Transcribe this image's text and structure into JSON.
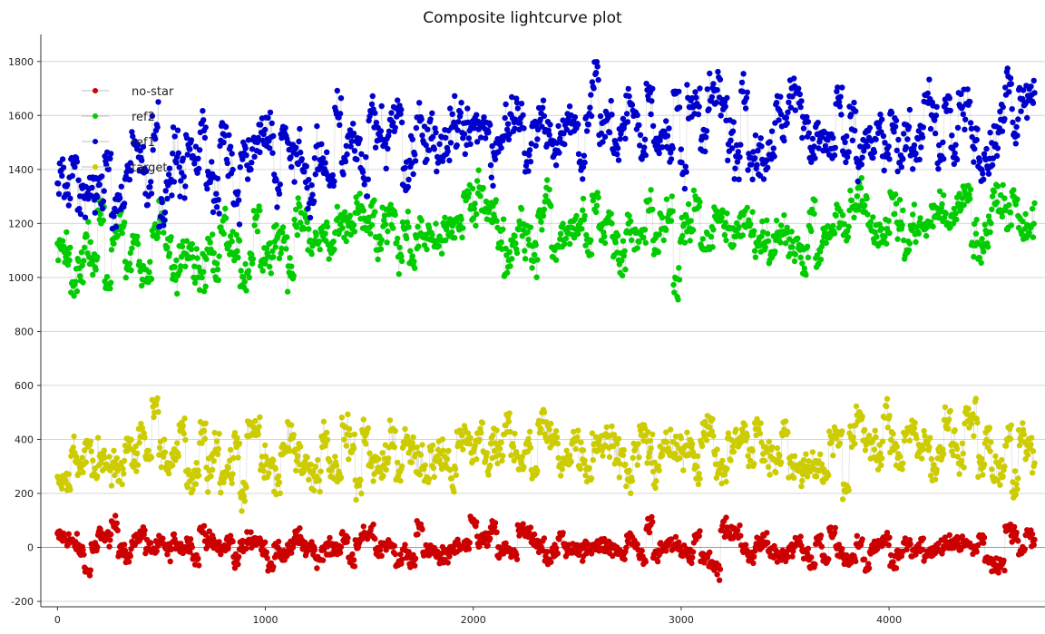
{
  "chart_data": {
    "type": "scatter",
    "title": "Composite lightcurve plot",
    "xlabel": "",
    "ylabel": "",
    "xlim": [
      -80,
      4750
    ],
    "ylim": [
      -220,
      1900
    ],
    "x_ticks": [
      0,
      1000,
      2000,
      3000,
      4000
    ],
    "y_ticks": [
      -200,
      0,
      200,
      400,
      600,
      800,
      1000,
      1200,
      1400,
      1600,
      1800
    ],
    "grid": "horizontal",
    "legend_position": "top-left",
    "connecting_lines": true,
    "n_points_per_series": 1300,
    "x_range": [
      0,
      4700
    ],
    "series": [
      {
        "name": "no-star",
        "color": "#cc0000",
        "trend": [
          [
            0,
            5
          ],
          [
            4700,
            0
          ]
        ],
        "scatter": 45,
        "range": [
          -150,
          175
        ]
      },
      {
        "name": "ref2",
        "color": "#00cc00",
        "trend": [
          [
            0,
            1040
          ],
          [
            500,
            1100
          ],
          [
            1000,
            1140
          ],
          [
            2000,
            1200
          ],
          [
            3000,
            1170
          ],
          [
            4000,
            1200
          ],
          [
            4700,
            1230
          ]
        ],
        "scatter": 95,
        "range": [
          840,
          1440
        ]
      },
      {
        "name": "ref1",
        "color": "#0000cc",
        "trend": [
          [
            0,
            1300
          ],
          [
            500,
            1400
          ],
          [
            1000,
            1460
          ],
          [
            2000,
            1520
          ],
          [
            3000,
            1580
          ],
          [
            4000,
            1560
          ],
          [
            4700,
            1590
          ]
        ],
        "scatter": 110,
        "range": [
          1090,
          1840
        ]
      },
      {
        "name": "target",
        "color": "#cccc00",
        "trend": [
          [
            0,
            310
          ],
          [
            1000,
            340
          ],
          [
            2000,
            350
          ],
          [
            3000,
            360
          ],
          [
            4000,
            350
          ],
          [
            4700,
            360
          ]
        ],
        "scatter": 85,
        "range": [
          100,
          620
        ]
      }
    ]
  }
}
